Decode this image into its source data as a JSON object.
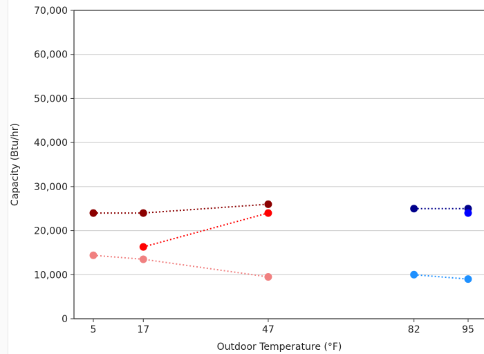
{
  "chart_data": {
    "type": "scatter",
    "title": "",
    "xlabel": "Outdoor Temperature (°F)",
    "ylabel": "Capacity (Btu/hr)",
    "xlim": [
      -2.5,
      100
    ],
    "ylim": [
      0,
      70000
    ],
    "x_ticks": [
      5,
      17,
      47,
      82,
      95
    ],
    "x_tick_labels": [
      "5",
      "17",
      "47",
      "82",
      "95"
    ],
    "y_ticks": [
      0,
      10000,
      20000,
      30000,
      40000,
      50000,
      60000,
      70000
    ],
    "y_tick_labels": [
      "0",
      "10,000",
      "20,000",
      "30,000",
      "40,000",
      "50,000",
      "60,000",
      "70,000"
    ],
    "grid": "horizontal",
    "legend": "none",
    "series": [
      {
        "x": [
          5,
          17,
          47
        ],
        "y": [
          24000,
          24000,
          26000
        ],
        "color": "#8b0000",
        "line": "dotted"
      },
      {
        "x": [
          17,
          47
        ],
        "y": [
          16300,
          24000
        ],
        "color": "#ff0000",
        "line": "dotted"
      },
      {
        "x": [
          5,
          17,
          47
        ],
        "y": [
          14400,
          13500,
          9500
        ],
        "color": "#f08080",
        "line": "dotted"
      },
      {
        "x": [
          82,
          95
        ],
        "y": [
          25000,
          25000
        ],
        "color": "#00008b",
        "line": "dotted"
      },
      {
        "x": [
          95
        ],
        "y": [
          24000
        ],
        "color": "#0000ff",
        "line": "none"
      },
      {
        "x": [
          82,
          95
        ],
        "y": [
          10000,
          9000
        ],
        "color": "#1e90ff",
        "line": "dotted"
      }
    ]
  }
}
